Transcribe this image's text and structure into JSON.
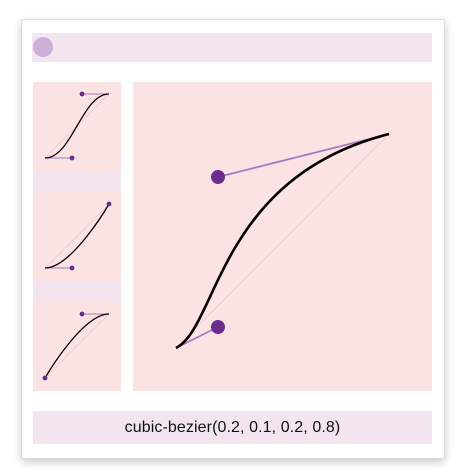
{
  "timing_function_label": "cubic-bezier(0.2, 0.1, 0.2, 0.8)",
  "main_curve": {
    "p1": [
      0.2,
      0.1
    ],
    "p2": [
      0.2,
      0.8
    ]
  },
  "presets": [
    {
      "p1": [
        0.42,
        0.0
      ],
      "p2": [
        0.58,
        1.0
      ]
    },
    {
      "p1": [
        0.42,
        0.0
      ],
      "p2": [
        1.0,
        1.0
      ]
    },
    {
      "p1": [
        0.0,
        0.0
      ],
      "p2": [
        0.58,
        1.0
      ]
    }
  ],
  "colors": {
    "panel_bg": "#fbe3e4",
    "bar_bg": "#f2e5ef",
    "handle": "#6b2d8f",
    "handle_line": "#a47ac0",
    "avatar": "#cdb0da"
  }
}
